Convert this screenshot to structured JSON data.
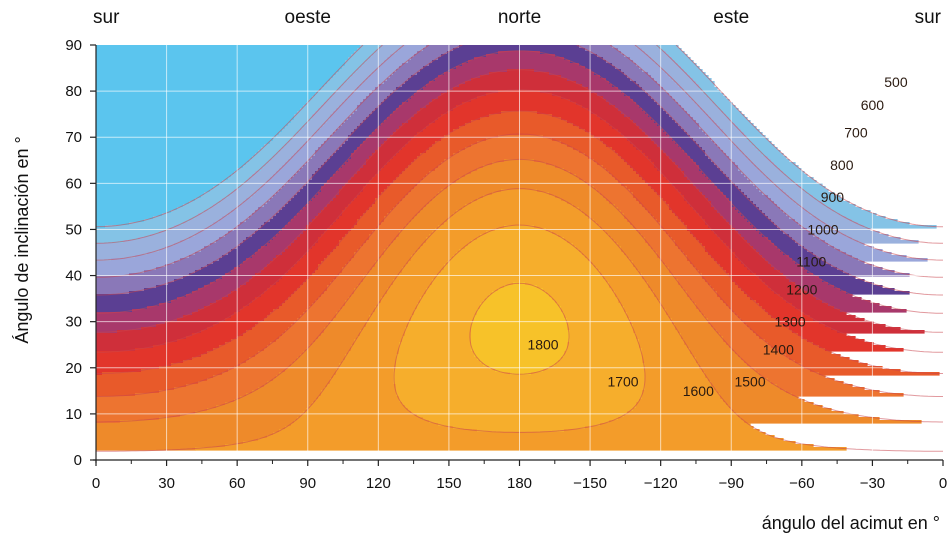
{
  "chart_data": {
    "type": "heatmap",
    "title": "",
    "xlabel": "ángulo del acimut en °",
    "ylabel": "Ángulo de inclinación en °",
    "x_tick_labels": [
      "0",
      "30",
      "60",
      "90",
      "120",
      "150",
      "180",
      "−150",
      "−120",
      "−90",
      "−60",
      "−30",
      "0"
    ],
    "y_ticks": [
      0,
      10,
      20,
      30,
      40,
      50,
      60,
      70,
      80,
      90
    ],
    "xlim": [
      0,
      360
    ],
    "ylim": [
      0,
      90
    ],
    "grid": true,
    "direction_labels": [
      {
        "text": "sur",
        "azimuth_position": 0
      },
      {
        "text": "oeste",
        "azimuth_position": 90
      },
      {
        "text": "norte",
        "azimuth_position": 180
      },
      {
        "text": "este",
        "azimuth_position": 270
      },
      {
        "text": "sur",
        "azimuth_position": 360
      }
    ],
    "contour_levels": [
      500,
      600,
      700,
      800,
      900,
      1000,
      1100,
      1200,
      1300,
      1400,
      1500,
      1600,
      1700,
      1800
    ],
    "contour_labels": [
      {
        "text": "500",
        "x": 340,
        "y": 82
      },
      {
        "text": "600",
        "x": 330,
        "y": 77
      },
      {
        "text": "700",
        "x": 323,
        "y": 71
      },
      {
        "text": "800",
        "x": 317,
        "y": 64
      },
      {
        "text": "900",
        "x": 313,
        "y": 57
      },
      {
        "text": "1000",
        "x": 309,
        "y": 50
      },
      {
        "text": "1100",
        "x": 304,
        "y": 43
      },
      {
        "text": "1200",
        "x": 300,
        "y": 37
      },
      {
        "text": "1300",
        "x": 295,
        "y": 30
      },
      {
        "text": "1400",
        "x": 290,
        "y": 24
      },
      {
        "text": "1500",
        "x": 278,
        "y": 17
      },
      {
        "text": "1600",
        "x": 256,
        "y": 15
      },
      {
        "text": "1700",
        "x": 224,
        "y": 17
      },
      {
        "text": "1800",
        "x": 190,
        "y": 25
      }
    ],
    "peak": {
      "x": 180,
      "y": 32,
      "value": 1850
    },
    "colors": {
      "low": "#5bc5ee",
      "mid_blue": "#9aa6da",
      "violet": "#5b3f93",
      "red": "#e2352b",
      "orange": "#ee8a2a",
      "high": "#f7c229"
    }
  }
}
